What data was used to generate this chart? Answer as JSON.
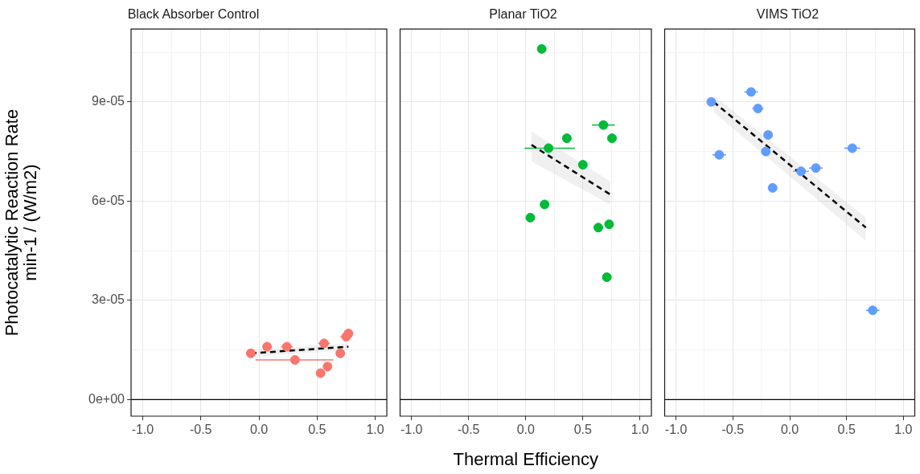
{
  "chart_data": [
    {
      "type": "scatter",
      "title": "Black Absorber Control",
      "ylabel": "Photocatalytic Reaction Rate\nmin-1 / (W/m2)",
      "xlim": [
        -1.1,
        1.1
      ],
      "ylim": [
        -5e-06,
        0.000112
      ],
      "grid": true,
      "xticks": [
        {
          "value": -1,
          "label": "-1.0"
        },
        {
          "value": -0.75,
          "label": null
        },
        {
          "value": -0.5,
          "label": "-0.5"
        },
        {
          "value": -0.25,
          "label": null
        },
        {
          "value": 0,
          "label": "0.0"
        },
        {
          "value": 0.25,
          "label": null
        },
        {
          "value": 0.5,
          "label": "0.5"
        },
        {
          "value": 0.75,
          "label": null
        },
        {
          "value": 1,
          "label": "1.0"
        }
      ],
      "yticks": [
        {
          "value": 0,
          "label": "0e+00"
        },
        {
          "value": 1.5e-05,
          "label": null
        },
        {
          "value": 3e-05,
          "label": "3e-05"
        },
        {
          "value": 4.5e-05,
          "label": null
        },
        {
          "value": 6e-05,
          "label": "6e-05"
        },
        {
          "value": 7.5e-05,
          "label": null
        },
        {
          "value": 9e-05,
          "label": "9e-05"
        },
        {
          "value": 0.000105,
          "label": null
        }
      ],
      "ref_lines": [
        {
          "axis": "y",
          "value": 0,
          "color": "#000000"
        }
      ],
      "series": [
        {
          "color": "#f8766d",
          "marker": "circle",
          "x": [
            -0.07,
            0.07,
            0.24,
            0.31,
            0.56,
            0.53,
            0.59,
            0.7,
            0.75,
            0.77
          ],
          "values": [
            1.4e-05,
            1.6e-05,
            1.6e-05,
            1.2e-05,
            1.7e-05,
            8e-06,
            1e-05,
            1.4e-05,
            1.9e-05,
            2e-05
          ],
          "xerrors": [
            0.04,
            null,
            0.05,
            [
              -0.03,
              0.64
            ],
            0.05,
            null,
            null,
            null,
            0.05,
            null
          ]
        },
        {
          "type": "line",
          "color": "#000000",
          "line_style": "dashed",
          "x": [
            -0.07,
            0.77
          ],
          "values": [
            1.4e-05,
            1.6e-05
          ],
          "lower": [
            1.3e-05,
            1.5e-05
          ],
          "upper": [
            1.5e-05,
            1.7e-05
          ]
        }
      ]
    },
    {
      "type": "scatter",
      "title": "Planar TiO2",
      "xlabel": "Thermal Efficiency",
      "xlim": [
        -1.1,
        1.1
      ],
      "ylim": [
        -5e-06,
        0.000112
      ],
      "grid": true,
      "tick_labels": "x",
      "xticks": [
        {
          "value": -1,
          "label": "-1.0"
        },
        {
          "value": -0.75,
          "label": null
        },
        {
          "value": -0.5,
          "label": "-0.5"
        },
        {
          "value": -0.25,
          "label": null
        },
        {
          "value": 0,
          "label": "0.0"
        },
        {
          "value": 0.25,
          "label": null
        },
        {
          "value": 0.5,
          "label": "0.5"
        },
        {
          "value": 0.75,
          "label": null
        },
        {
          "value": 1,
          "label": "1.0"
        }
      ],
      "yticks": [
        0,
        {
          "value": 1.5e-05,
          "label": null
        },
        3e-05,
        {
          "value": 4.5e-05,
          "label": null
        },
        6e-05,
        {
          "value": 7.5e-05,
          "label": null
        },
        9e-05,
        {
          "value": 0.000105,
          "label": null
        }
      ],
      "ref_lines": [
        {
          "axis": "y",
          "value": 0,
          "color": "#000000"
        }
      ],
      "series": [
        {
          "color": "#00ba38",
          "marker": "circle",
          "x": [
            0.14,
            0.68,
            0.755,
            0.36,
            0.2,
            0.5,
            0.165,
            0.04,
            0.635,
            0.73,
            0.71
          ],
          "values": [
            0.000106,
            8.3e-05,
            7.9e-05,
            7.9e-05,
            7.6e-05,
            7.1e-05,
            5.9e-05,
            5.5e-05,
            5.2e-05,
            5.3e-05,
            3.7e-05
          ],
          "xerrors": [
            null,
            [
              0.58,
              0.78
            ],
            null,
            null,
            [
              -0.01,
              0.43
            ],
            null,
            null,
            null,
            null,
            null,
            null
          ]
        },
        {
          "type": "line",
          "color": "#000000",
          "line_style": "dashed",
          "x": [
            0.05,
            0.74
          ],
          "values": [
            7.7e-05,
            6.2e-05
          ],
          "lower": [
            7.2e-05,
            5.9e-05
          ],
          "upper": [
            8.1e-05,
            6.6e-05
          ]
        }
      ]
    },
    {
      "type": "scatter",
      "title": "VIMS TiO2",
      "xlim": [
        -1.1,
        1.1
      ],
      "ylim": [
        -5e-06,
        0.000112
      ],
      "grid": true,
      "tick_labels": "x",
      "xticks": [
        {
          "value": -1,
          "label": "-1.0"
        },
        {
          "value": -0.75,
          "label": null
        },
        {
          "value": -0.5,
          "label": "-0.5"
        },
        {
          "value": -0.25,
          "label": null
        },
        {
          "value": 0,
          "label": "0.0"
        },
        {
          "value": 0.25,
          "label": null
        },
        {
          "value": 0.5,
          "label": "0.5"
        },
        {
          "value": 0.75,
          "label": null
        },
        {
          "value": 1,
          "label": "1.0"
        }
      ],
      "yticks": [
        0,
        {
          "value": 1.5e-05,
          "label": null
        },
        3e-05,
        {
          "value": 4.5e-05,
          "label": null
        },
        6e-05,
        {
          "value": 7.5e-05,
          "label": null
        },
        9e-05,
        {
          "value": 0.000105,
          "label": null
        }
      ],
      "ref_lines": [
        {
          "axis": "y",
          "value": 0,
          "color": "#000000"
        }
      ],
      "series": [
        {
          "color": "#619cff",
          "marker": "circle",
          "x": [
            -0.69,
            -0.34,
            -0.28,
            -0.19,
            -0.21,
            -0.62,
            -0.15,
            0.1,
            0.23,
            0.55,
            0.73
          ],
          "values": [
            9e-05,
            9.3e-05,
            8.8e-05,
            8e-05,
            7.5e-05,
            7.4e-05,
            6.4e-05,
            6.9e-05,
            7e-05,
            7.6e-05,
            2.7e-05
          ],
          "xerrors": [
            null,
            0.06,
            0.05,
            null,
            null,
            0.06,
            null,
            0.07,
            0.06,
            0.07,
            0.06
          ]
        },
        {
          "type": "line",
          "color": "#000000",
          "line_style": "dashed",
          "x": [
            -0.67,
            0.67
          ],
          "values": [
            9e-05,
            5.2e-05
          ],
          "lower": [
            8.7e-05,
            4.8e-05
          ],
          "upper": [
            9.2e-05,
            5.5e-05
          ]
        }
      ]
    }
  ]
}
